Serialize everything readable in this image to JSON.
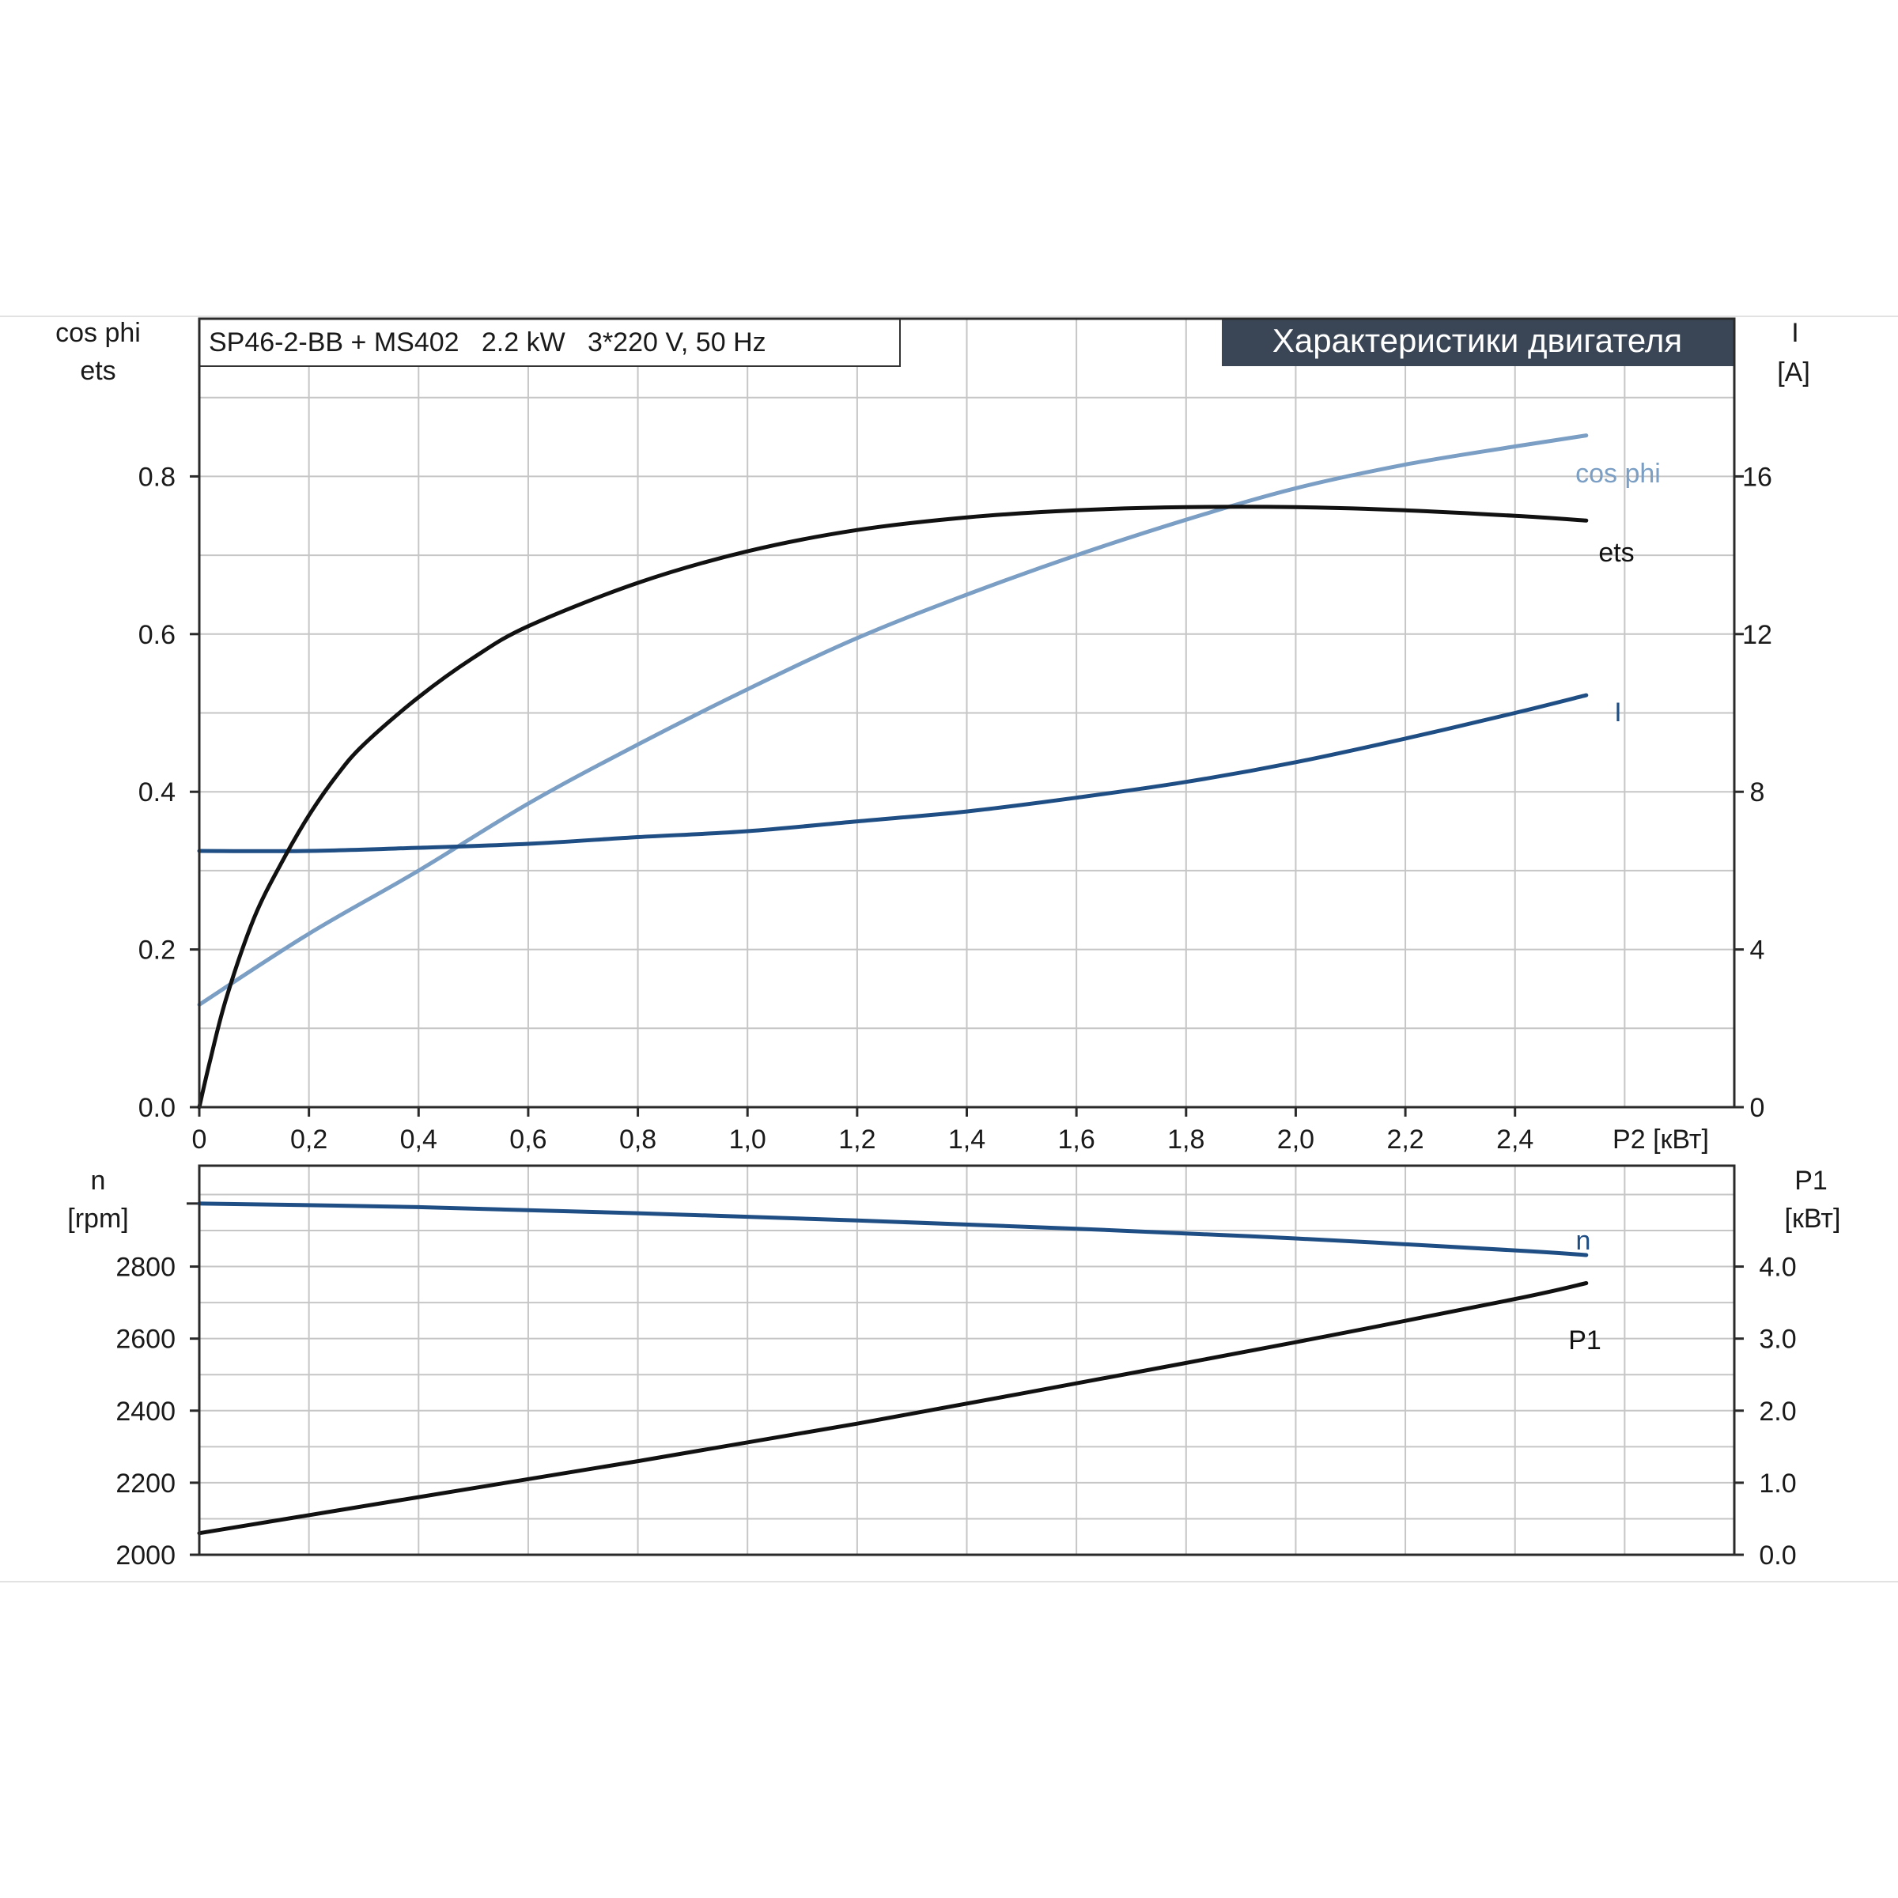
{
  "header": {
    "model": "SP46-2-BB + MS402   2.2 kW   3*220 V, 50 Hz",
    "title": "Характеристики двигателя"
  },
  "colors": {
    "ets": "#111111",
    "cos_phi": "#7a9ec4",
    "I": "#1f4e85",
    "n": "#1f4e85",
    "P1": "#111111",
    "title_bg": "#3a4656",
    "title_fg": "#ffffff"
  },
  "chart_data": [
    {
      "type": "line",
      "name": "upper",
      "xlabel": "P2 [кВт]",
      "x_ticks": [
        "0",
        "0,2",
        "0,4",
        "0,6",
        "0,8",
        "1,0",
        "1,2",
        "1,4",
        "1,6",
        "1,8",
        "2,0",
        "2,2",
        "2,4"
      ],
      "x_tick_values": [
        0,
        0.2,
        0.4,
        0.6,
        0.8,
        1.0,
        1.2,
        1.4,
        1.6,
        1.8,
        2.0,
        2.2,
        2.4
      ],
      "xlim": [
        0,
        2.8
      ],
      "ylabel_left": [
        "cos phi",
        "ets"
      ],
      "y_left_ticks": [
        "0.0",
        "0.2",
        "0.4",
        "0.6",
        "0.8"
      ],
      "y_left_tick_values": [
        0,
        0.2,
        0.4,
        0.6,
        0.8
      ],
      "ylim_left": [
        0,
        1.0
      ],
      "ylabel_right": [
        "I",
        "[A]"
      ],
      "y_right_ticks": [
        "0",
        "4",
        "8",
        "12",
        "16"
      ],
      "y_right_tick_values": [
        0,
        4,
        8,
        12,
        16
      ],
      "ylim_right": [
        0,
        20
      ],
      "grid": true,
      "series": [
        {
          "name": "ets",
          "axis": "left",
          "color_key": "ets",
          "x": [
            0,
            0.02,
            0.05,
            0.1,
            0.15,
            0.2,
            0.25,
            0.3,
            0.4,
            0.5,
            0.6,
            0.8,
            1.0,
            1.2,
            1.4,
            1.6,
            1.8,
            2.0,
            2.2,
            2.4,
            2.53
          ],
          "y": [
            0,
            0.06,
            0.14,
            0.24,
            0.31,
            0.37,
            0.42,
            0.46,
            0.52,
            0.57,
            0.61,
            0.665,
            0.705,
            0.732,
            0.748,
            0.757,
            0.761,
            0.761,
            0.757,
            0.75,
            0.744
          ]
        },
        {
          "name": "cos phi",
          "axis": "left",
          "color_key": "cos_phi",
          "x": [
            0,
            0.2,
            0.4,
            0.6,
            0.8,
            1.0,
            1.2,
            1.4,
            1.6,
            1.8,
            2.0,
            2.2,
            2.4,
            2.53
          ],
          "y": [
            0.13,
            0.22,
            0.3,
            0.385,
            0.46,
            0.53,
            0.595,
            0.65,
            0.7,
            0.745,
            0.785,
            0.815,
            0.838,
            0.852
          ]
        },
        {
          "name": "I",
          "axis": "right",
          "color_key": "I",
          "x": [
            0,
            0.2,
            0.4,
            0.6,
            0.8,
            1.0,
            1.2,
            1.4,
            1.6,
            1.8,
            2.0,
            2.2,
            2.4,
            2.53
          ],
          "y": [
            6.5,
            6.5,
            6.58,
            6.68,
            6.85,
            7.0,
            7.25,
            7.5,
            7.85,
            8.25,
            8.75,
            9.35,
            10.0,
            10.45
          ]
        }
      ],
      "curve_labels": [
        "ets",
        "cos phi",
        "I"
      ]
    },
    {
      "type": "line",
      "name": "lower",
      "xlim": [
        0,
        2.8
      ],
      "ylabel_left": [
        "n",
        "[rpm]"
      ],
      "y_left_ticks": [
        "2000",
        "2200",
        "2400",
        "2600",
        "2800"
      ],
      "y_left_tick_values": [
        2000,
        2200,
        2400,
        2600,
        2800
      ],
      "ylim_left": [
        2000,
        3080
      ],
      "ylabel_right": [
        "P1",
        "[кВт]"
      ],
      "y_right_ticks": [
        "0.0",
        "1.0",
        "2.0",
        "3.0",
        "4.0"
      ],
      "y_right_tick_values": [
        0,
        1,
        2,
        3,
        4
      ],
      "ylim_right": [
        0,
        5.4
      ],
      "grid": true,
      "series": [
        {
          "name": "n",
          "axis": "left",
          "color_key": "n",
          "x": [
            0,
            0.4,
            0.8,
            1.2,
            1.6,
            2.0,
            2.4,
            2.53
          ],
          "y": [
            2975,
            2965,
            2948,
            2928,
            2905,
            2878,
            2845,
            2832
          ]
        },
        {
          "name": "P1",
          "axis": "right",
          "color_key": "P1",
          "x": [
            0,
            0.4,
            0.8,
            1.2,
            1.6,
            2.0,
            2.4,
            2.53
          ],
          "y": [
            0.3,
            0.8,
            1.3,
            1.82,
            2.38,
            2.95,
            3.55,
            3.77
          ]
        }
      ],
      "curve_labels": [
        "n",
        "P1"
      ]
    }
  ]
}
